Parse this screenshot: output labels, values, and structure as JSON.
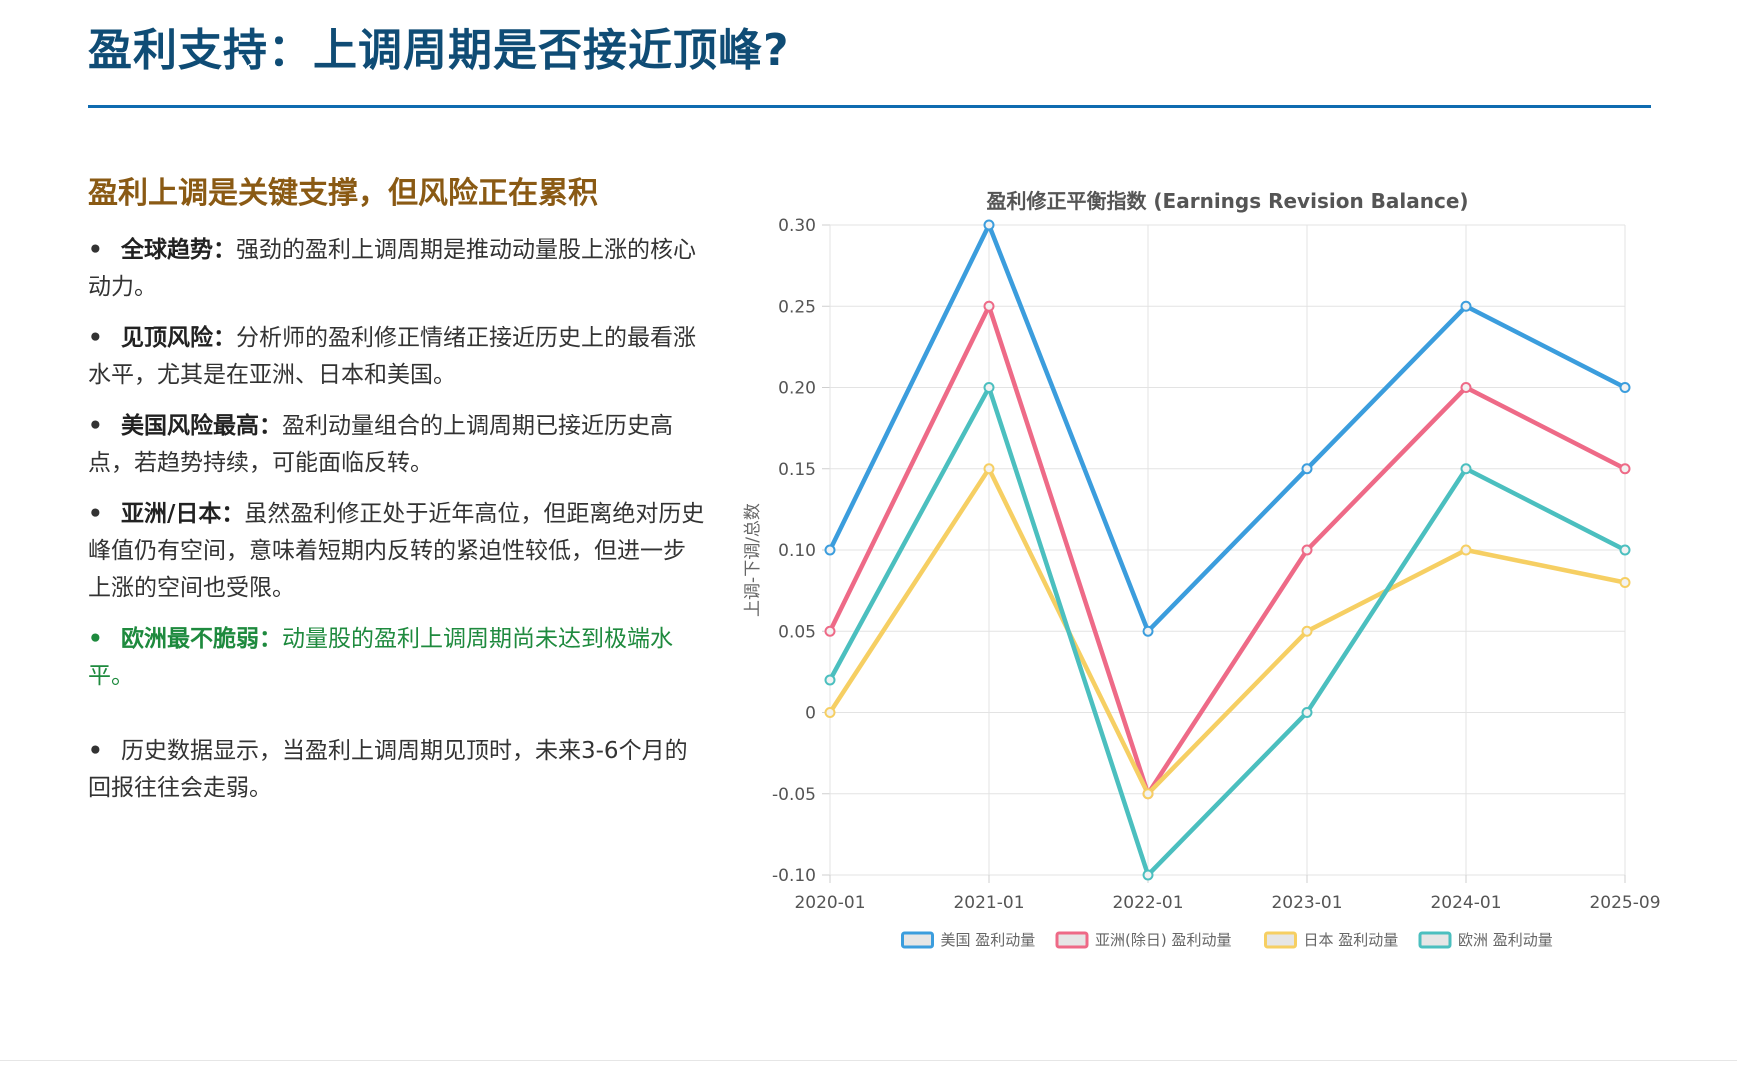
{
  "page": {
    "title": "盈利支持：上调周期是否接近顶峰?",
    "subtitle": "盈利上调是关键支撑，但风险正在累积"
  },
  "bullets": [
    {
      "bullet": "•",
      "label": "全球趋势",
      "sep": "：",
      "text": "强劲的盈利上调周期是推动动量股上涨的核心动力。",
      "highlight": false
    },
    {
      "bullet": "•",
      "label": "见顶风险",
      "sep": "：",
      "text": "分析师的盈利修正情绪正接近历史上的最看涨水平，尤其是在亚洲、日本和美国。",
      "highlight": false
    },
    {
      "bullet": "•",
      "label": "美国风险最高",
      "sep": "：",
      "text": "盈利动量组合的上调周期已接近历史高点，若趋势持续，可能面临反转。",
      "highlight": false
    },
    {
      "bullet": "•",
      "label": "亚洲/日本",
      "sep": "：",
      "text": "虽然盈利修正处于近年高位，但距离绝对历史峰值仍有空间，意味着短期内反转的紧迫性较低，但进一步上涨的空间也受限。",
      "highlight": false
    },
    {
      "bullet": "•",
      "label": "欧洲最不脆弱",
      "sep": "：",
      "text": "动量股的盈利上调周期尚未达到极端水平。",
      "highlight": true
    }
  ],
  "note": {
    "bullet": "•",
    "text": "历史数据显示，当盈利上调周期见顶时，未来3-6个月的回报往往会走弱。"
  },
  "chart_data": {
    "type": "line",
    "title": "盈利修正平衡指数 (Earnings Revision Balance)",
    "xlabel": "",
    "ylabel": "上调-下调/总数",
    "categories": [
      "2020-01",
      "2021-01",
      "2022-01",
      "2023-01",
      "2024-01",
      "2025-09"
    ],
    "ylim": [
      -0.1,
      0.3
    ],
    "yticks": [
      0.3,
      0.25,
      0.2,
      0.15,
      0.1,
      0.05,
      0,
      -0.05,
      -0.1
    ],
    "ytick_labels": [
      "0.30",
      "0.25",
      "0.20",
      "0.15",
      "0.10",
      "0.05",
      "0",
      "-0.05",
      "-0.10"
    ],
    "grid": true,
    "legend_position": "bottom",
    "series": [
      {
        "name": "美国 盈利动量",
        "color": "#3b9ddd",
        "values": [
          0.1,
          0.3,
          0.05,
          0.15,
          0.25,
          0.2
        ]
      },
      {
        "name": "亚洲(除日) 盈利动量",
        "color": "#ee6a87",
        "values": [
          0.05,
          0.25,
          -0.05,
          0.1,
          0.2,
          0.15
        ]
      },
      {
        "name": "日本 盈利动量",
        "color": "#f6cf63",
        "values": [
          0.0,
          0.15,
          -0.05,
          0.05,
          0.1,
          0.08
        ]
      },
      {
        "name": "欧洲 盈利动量",
        "color": "#4bbfbf",
        "values": [
          0.02,
          0.2,
          -0.1,
          0.0,
          0.15,
          0.1
        ]
      }
    ]
  }
}
